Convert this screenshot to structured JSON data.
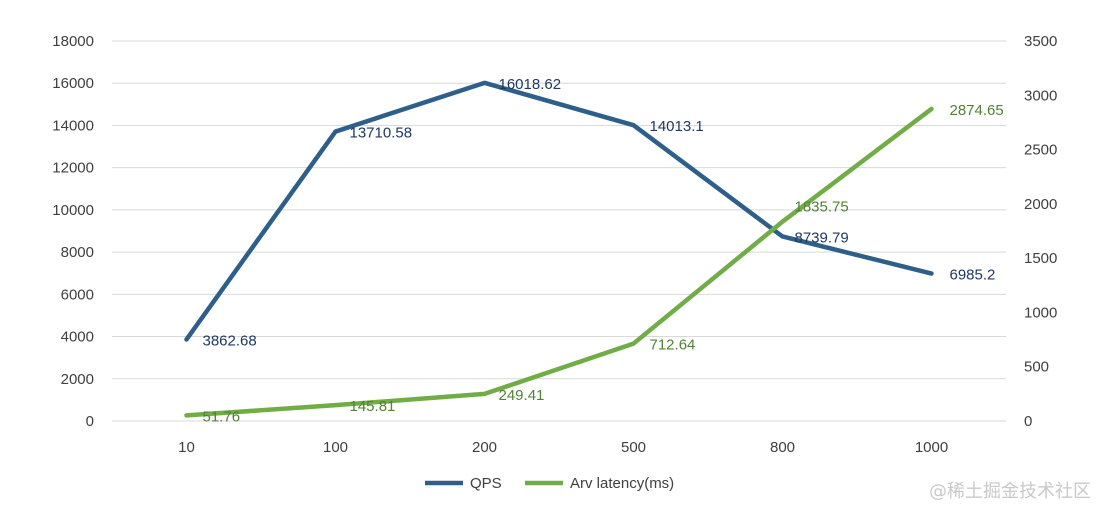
{
  "chart_data": {
    "type": "line",
    "categories": [
      "10",
      "100",
      "200",
      "500",
      "800",
      "1000"
    ],
    "series": [
      {
        "name": "QPS",
        "axis": "left",
        "color": "#2E5F8A",
        "label_color": "#1F3864",
        "values": [
          3862.68,
          13710.58,
          16018.62,
          14013.1,
          8739.79,
          6985.2
        ],
        "labels": [
          "3862.68",
          "13710.58",
          "16018.62",
          "14013.1",
          "8739.79",
          "6985.2"
        ]
      },
      {
        "name": "Arv latency(ms)",
        "axis": "right",
        "color": "#70AD47",
        "label_color": "#538135",
        "values": [
          51.76,
          145.81,
          249.41,
          712.64,
          1835.75,
          2874.65
        ],
        "labels": [
          "51.76",
          "145.81",
          "249.41",
          "712.64",
          "1835.75",
          "2874.65"
        ]
      }
    ],
    "y_left": {
      "lim": [
        0,
        18000
      ],
      "ticks": [
        0,
        2000,
        4000,
        6000,
        8000,
        10000,
        12000,
        14000,
        16000,
        18000
      ]
    },
    "y_right": {
      "lim": [
        0,
        3500
      ],
      "ticks": [
        0,
        500,
        1000,
        1500,
        2000,
        2500,
        3000,
        3500
      ]
    },
    "grid": true,
    "legend_position": "bottom",
    "title": "",
    "xlabel": "",
    "ylabel": ""
  },
  "watermark": "@稀土掘金技术社区"
}
